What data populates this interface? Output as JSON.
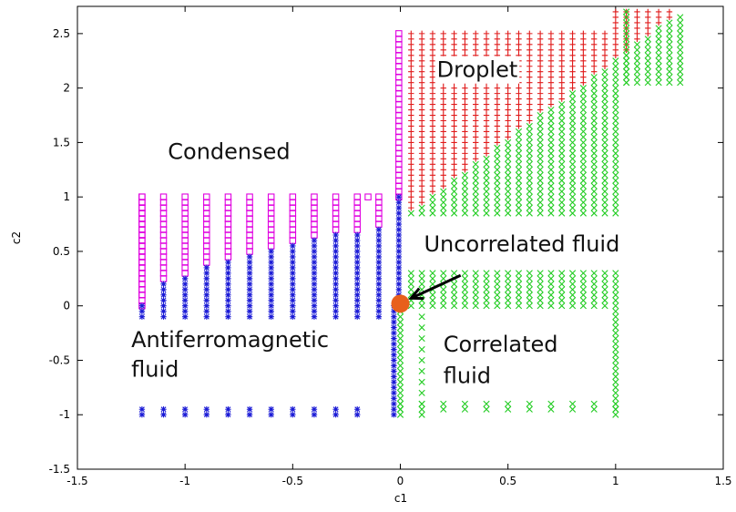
{
  "chart_data": {
    "type": "scatter",
    "xlabel": "c1",
    "ylabel": "c2",
    "xlim": [
      -1.5,
      1.5
    ],
    "ylim": [
      -1.5,
      2.75
    ],
    "x_ticks": [
      "-1.5",
      "-1",
      "-0.5",
      "0",
      "0.5",
      "1",
      "1.5"
    ],
    "x_tick_values": [
      -1.5,
      -1,
      -0.5,
      0,
      0.5,
      1,
      1.5
    ],
    "y_ticks": [
      "-1.5",
      "-1",
      "-0.5",
      "0",
      "0.5",
      "1",
      "1.5",
      "2",
      "2.5"
    ],
    "y_tick_values": [
      -1.5,
      -1,
      -0.5,
      0,
      0.5,
      1,
      1.5,
      2,
      2.5
    ],
    "grid": false,
    "legend": "none",
    "region_labels": [
      {
        "text": "Droplet",
        "x": 0.17,
        "y": 2.1
      },
      {
        "text": "Condensed",
        "x": -1.08,
        "y": 1.35
      },
      {
        "text": "Uncorrelated fluid",
        "x": 0.11,
        "y": 0.5
      },
      {
        "text": "Antiferromagnetic",
        "x": -1.25,
        "y": -0.38
      },
      {
        "text": "fluid",
        "x": -1.25,
        "y": -0.65
      },
      {
        "text": "Correlated",
        "x": 0.2,
        "y": -0.42
      },
      {
        "text": "fluid",
        "x": 0.2,
        "y": -0.71
      }
    ],
    "annotation": {
      "from": [
        0.28,
        0.28
      ],
      "to": [
        0.05,
        0.07
      ]
    },
    "special_point": {
      "x": 0.0,
      "y": 0.02,
      "color": "#e8601c"
    },
    "series": [
      {
        "marker": "square",
        "color": "#e000e0",
        "segments": [
          {
            "x": -1.2,
            "y_from": 0.0,
            "y_to": 1.0,
            "step": 0.05
          },
          {
            "x": -0.007,
            "y_from": 1.0,
            "y_to": 2.5,
            "step": 0.05
          },
          {
            "x": -0.15,
            "y_from": 1.0,
            "y_to": 1.0,
            "step": 0.05
          }
        ],
        "rows": [
          {
            "y": 1.0,
            "x_from": -1.2,
            "x_to": -0.1,
            "step": 0.1
          },
          {
            "y": 0.95,
            "x_from": -1.2,
            "x_to": -0.1,
            "step": 0.1
          },
          {
            "y": 0.9,
            "x_from": -1.2,
            "x_to": -0.1,
            "step": 0.1
          },
          {
            "y": 0.85,
            "x_from": -1.2,
            "x_to": -0.1,
            "step": 0.1
          },
          {
            "y": 0.8,
            "x_from": -1.2,
            "x_to": -0.1,
            "step": 0.1
          },
          {
            "y": 0.75,
            "x_from": -1.2,
            "x_to": -0.1,
            "step": 0.1
          },
          {
            "y": 0.7,
            "x_from": -1.2,
            "x_to": -0.2,
            "step": 0.1
          },
          {
            "y": 0.65,
            "x_from": -1.2,
            "x_to": -0.4,
            "step": 0.1
          },
          {
            "y": 0.6,
            "x_from": -1.2,
            "x_to": -0.5,
            "step": 0.1
          },
          {
            "y": 0.55,
            "x_from": -1.2,
            "x_to": -0.6,
            "step": 0.1
          },
          {
            "y": 0.5,
            "x_from": -1.2,
            "x_to": -0.7,
            "step": 0.1
          },
          {
            "y": 0.45,
            "x_from": -1.2,
            "x_to": -0.8,
            "step": 0.1
          },
          {
            "y": 0.4,
            "x_from": -1.2,
            "x_to": -0.9,
            "step": 0.1
          },
          {
            "y": 0.35,
            "x_from": -1.2,
            "x_to": -1.0,
            "step": 0.1
          },
          {
            "y": 0.3,
            "x_from": -1.2,
            "x_to": -1.0,
            "step": 0.1
          },
          {
            "y": 0.25,
            "x_from": -1.2,
            "x_to": -1.1,
            "step": 0.1
          },
          {
            "y": 0.2,
            "x_from": -1.2,
            "x_to": -1.2,
            "step": 0.1
          },
          {
            "y": 0.15,
            "x_from": -1.2,
            "x_to": -1.2,
            "step": 0.1
          },
          {
            "y": 0.1,
            "x_from": -1.2,
            "x_to": -1.2,
            "step": 0.1
          }
        ]
      },
      {
        "marker": "star",
        "color": "#1a1ad6",
        "rows": [
          {
            "y": 0.7,
            "x_from": -0.1,
            "x_to": -0.1,
            "step": 0.1
          },
          {
            "y": 0.65,
            "x_from": -0.3,
            "x_to": -0.1,
            "step": 0.1
          },
          {
            "y": 0.6,
            "x_from": -0.4,
            "x_to": -0.1,
            "step": 0.1
          },
          {
            "y": 0.55,
            "x_from": -0.5,
            "x_to": -0.1,
            "step": 0.1
          },
          {
            "y": 0.5,
            "x_from": -0.6,
            "x_to": -0.1,
            "step": 0.1
          },
          {
            "y": 0.45,
            "x_from": -0.7,
            "x_to": -0.1,
            "step": 0.1
          },
          {
            "y": 0.4,
            "x_from": -0.8,
            "x_to": -0.1,
            "step": 0.1
          },
          {
            "y": 0.35,
            "x_from": -0.9,
            "x_to": -0.1,
            "step": 0.1
          },
          {
            "y": 0.3,
            "x_from": -0.9,
            "x_to": -0.1,
            "step": 0.1
          },
          {
            "y": 0.25,
            "x_from": -1.0,
            "x_to": -0.1,
            "step": 0.1
          },
          {
            "y": 0.2,
            "x_from": -1.1,
            "x_to": -0.1,
            "step": 0.1
          },
          {
            "y": 0.15,
            "x_from": -1.1,
            "x_to": -0.1,
            "step": 0.1
          },
          {
            "y": 0.1,
            "x_from": -1.1,
            "x_to": -0.1,
            "step": 0.1
          },
          {
            "y": 0.05,
            "x_from": -1.1,
            "x_to": -0.1,
            "step": 0.1
          },
          {
            "y": 0.0,
            "x_from": -1.2,
            "x_to": -0.1,
            "step": 0.1
          },
          {
            "y": -0.05,
            "x_from": -1.2,
            "x_to": -0.1,
            "step": 0.1
          },
          {
            "y": -0.1,
            "x_from": -1.2,
            "x_to": -0.1,
            "step": 0.1
          },
          {
            "y": -0.95,
            "x_from": -1.2,
            "x_to": -0.2,
            "step": 0.1
          },
          {
            "y": -1.0,
            "x_from": -1.2,
            "x_to": -0.2,
            "step": 0.1
          }
        ],
        "segments": [
          {
            "x": -0.03,
            "y_from": -1.0,
            "y_to": 0.0,
            "step": 0.05
          },
          {
            "x": -0.007,
            "y_from": 0.0,
            "y_to": 1.0,
            "step": 0.05
          }
        ]
      },
      {
        "marker": "plus",
        "color": "#e01a1a",
        "region": {
          "x_from": 0.05,
          "x_to": 1.25,
          "y_from": 0.8,
          "y_to": 2.7,
          "step_x": 0.05,
          "step_y": 0.05,
          "boundary": "y > 0.8 + 1.9*(x-0.0)/1.3"
        }
      },
      {
        "marker": "cross",
        "color": "#22cc22",
        "region": {
          "x_from": 0.0,
          "x_to": 1.3,
          "y_from": 0.8,
          "y_to": 2.7,
          "step_x": 0.05,
          "step_y": 0.05,
          "boundary": "y <= 0.8 + 1.9*(x-0.0)/1.3"
        },
        "bands": [
          {
            "x_from": 0.05,
            "x_to": 1.0,
            "y_from": 0.0,
            "y_to": 0.3,
            "step_x": 0.05,
            "step_y": 0.05
          },
          {
            "x_from": 0.0,
            "x_to": 1.0,
            "y_from": -0.95,
            "y_to": -0.9,
            "step_x": 0.1,
            "step_y": 0.05
          }
        ],
        "segments": [
          {
            "x": 0.0,
            "y_from": -1.0,
            "y_to": 0.0,
            "step": 0.05
          },
          {
            "x": 0.1,
            "y_from": -1.0,
            "y_to": -0.05,
            "step": 0.1
          },
          {
            "x": 1.0,
            "y_from": -1.0,
            "y_to": -0.05,
            "step": 0.05
          },
          {
            "x": 1.05,
            "y_from": 2.05,
            "y_to": 2.7,
            "step": 0.05
          }
        ]
      }
    ]
  }
}
